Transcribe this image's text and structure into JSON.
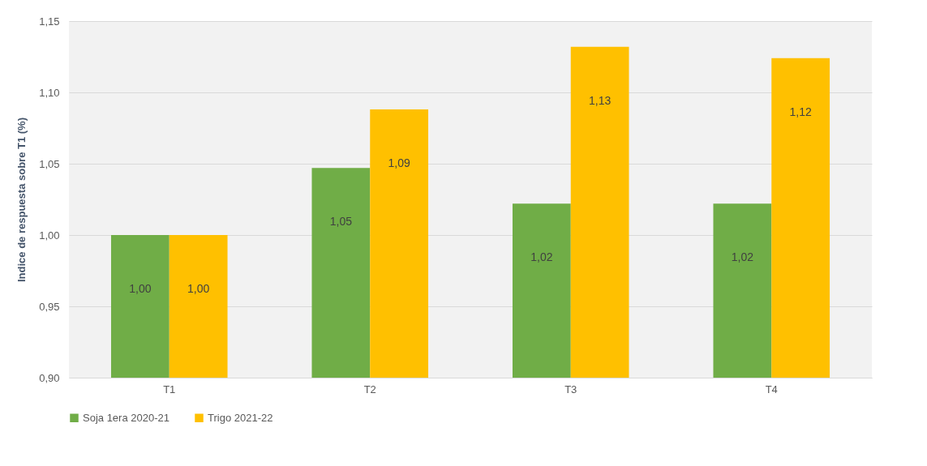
{
  "chart_data": {
    "type": "bar",
    "ylabel": "Indice de respuesta sobre T1  (%)",
    "categories": [
      "T1",
      "T2",
      "T3",
      "T4"
    ],
    "series": [
      {
        "name": "Soja 1era 2020-21",
        "color": "#70ad47",
        "values": [
          1.0,
          1.047,
          1.022,
          1.022
        ],
        "value_labels": [
          "1,00",
          "1,05",
          "1,02",
          "1,02"
        ]
      },
      {
        "name": "Trigo 2021-22",
        "color": "#ffc000",
        "values": [
          1.0,
          1.088,
          1.132,
          1.124
        ],
        "value_labels": [
          "1,00",
          "1,09",
          "1,13",
          "1,12"
        ]
      }
    ],
    "ylim": [
      0.9,
      1.15
    ],
    "yticks": [
      {
        "value": 0.9,
        "label": "0,90"
      },
      {
        "value": 0.95,
        "label": "0,95"
      },
      {
        "value": 1.0,
        "label": "1,00"
      },
      {
        "value": 1.05,
        "label": "1,05"
      },
      {
        "value": 1.1,
        "label": "1,10"
      },
      {
        "value": 1.15,
        "label": "1,15"
      }
    ],
    "grid": "y",
    "legend": "bottom"
  }
}
